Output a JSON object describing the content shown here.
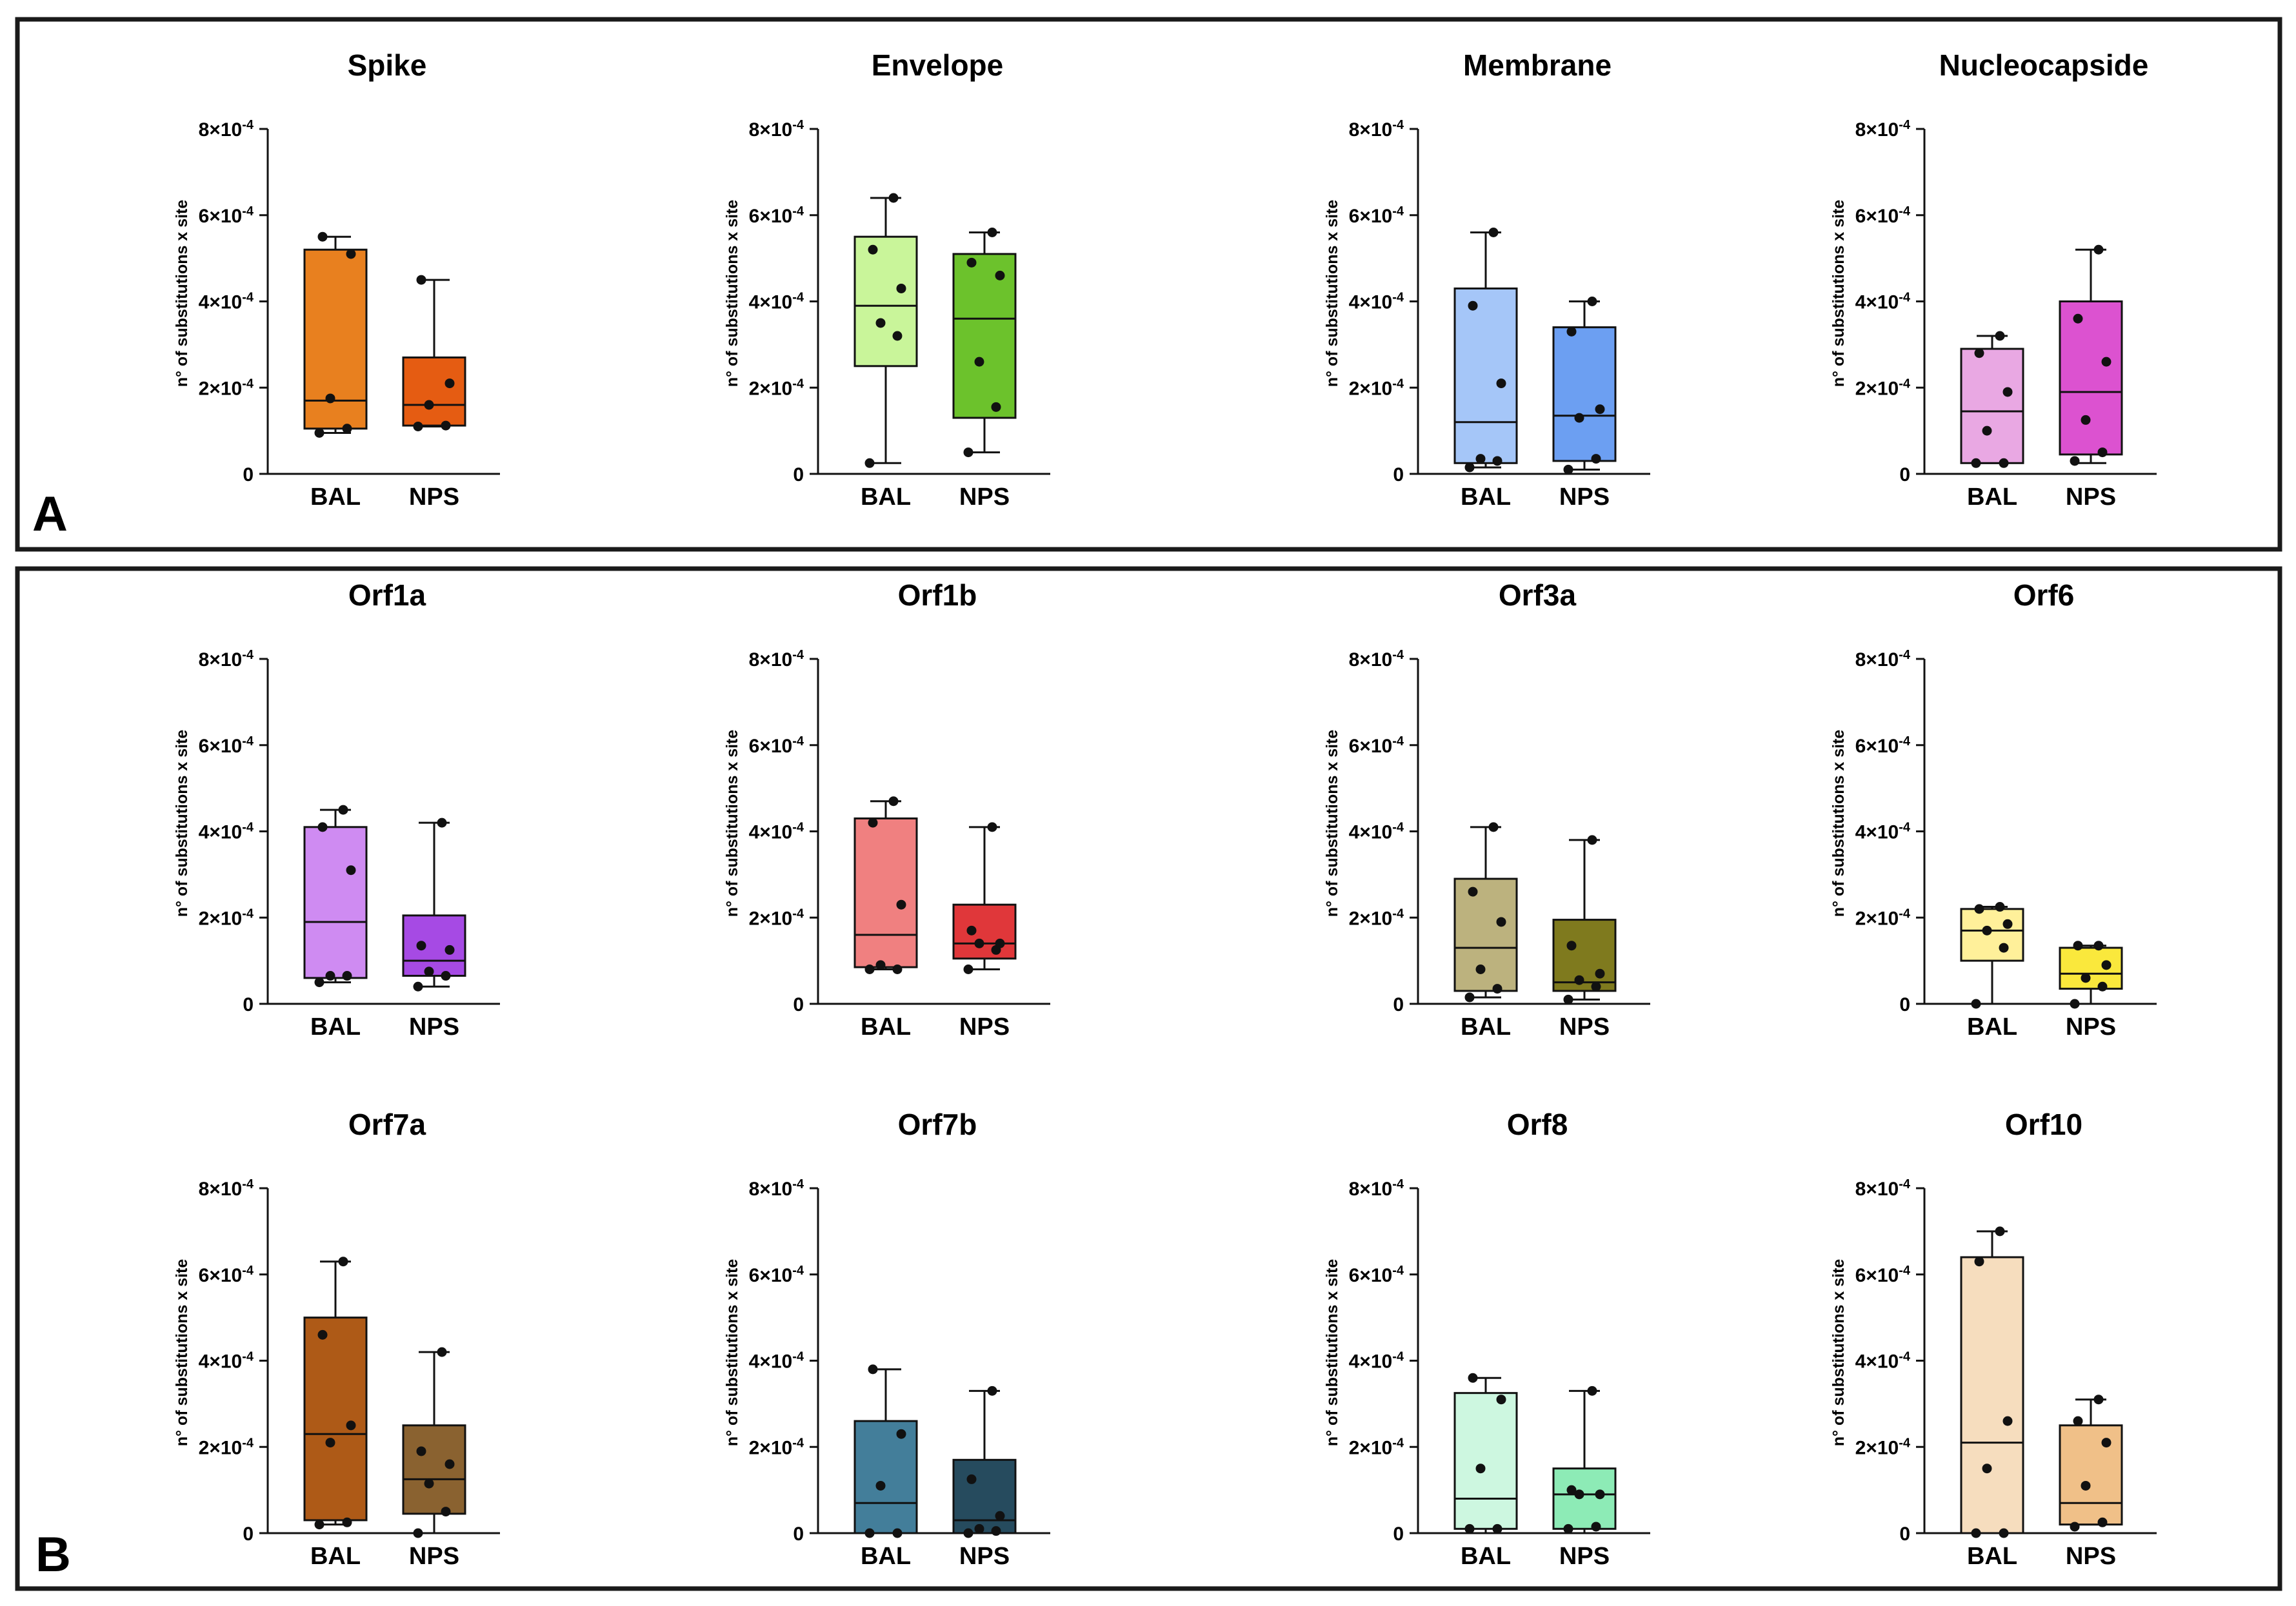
{
  "figure": {
    "panel_labels": [
      "A",
      "B"
    ],
    "y_axis_label": "n° of substitutions x site",
    "y_tick_labels": [
      {
        "base": "0",
        "exp": ""
      },
      {
        "base": "2×10",
        "exp": "-4"
      },
      {
        "base": "4×10",
        "exp": "-4"
      },
      {
        "base": "6×10",
        "exp": "-4"
      },
      {
        "base": "8×10",
        "exp": "-4"
      }
    ],
    "categories": [
      "BAL",
      "NPS"
    ]
  },
  "chart_data": [
    {
      "type": "box",
      "title": "Spike",
      "panel": "A",
      "ylabel": "n° of substitutions x site",
      "ylim": [
        0,
        0.0008
      ],
      "categories": [
        "BAL",
        "NPS"
      ],
      "series": [
        {
          "name": "BAL",
          "color": "#E8801F",
          "whisker_low": 9.5e-05,
          "q1": 0.000105,
          "median": 0.00017,
          "q3": 0.00052,
          "whisker_high": 0.00055,
          "points": [
            9.5e-05,
            0.000105,
            0.000175,
            0.00051,
            0.00055
          ]
        },
        {
          "name": "NPS",
          "color": "#E55C12",
          "whisker_low": 0.00011,
          "q1": 0.000112,
          "median": 0.00016,
          "q3": 0.00027,
          "whisker_high": 0.00045,
          "points": [
            0.00011,
            0.000112,
            0.00016,
            0.00021,
            0.00045
          ]
        }
      ]
    },
    {
      "type": "box",
      "title": "Envelope",
      "panel": "A",
      "ylabel": "n° of substitutions x site",
      "ylim": [
        0,
        0.0008
      ],
      "categories": [
        "BAL",
        "NPS"
      ],
      "series": [
        {
          "name": "BAL",
          "color": "#C9F59A",
          "whisker_low": 2.5e-05,
          "q1": 0.00025,
          "median": 0.00039,
          "q3": 0.00055,
          "whisker_high": 0.00064,
          "points": [
            2.5e-05,
            0.00032,
            0.00035,
            0.00043,
            0.00052,
            0.00064
          ]
        },
        {
          "name": "NPS",
          "color": "#6CC22C",
          "whisker_low": 5e-05,
          "q1": 0.00013,
          "median": 0.00036,
          "q3": 0.00051,
          "whisker_high": 0.00056,
          "points": [
            5e-05,
            0.000155,
            0.00026,
            0.00046,
            0.00049,
            0.00056
          ]
        }
      ]
    },
    {
      "type": "box",
      "title": "Membrane",
      "panel": "A",
      "ylabel": "n° of substitutions x site",
      "ylim": [
        0,
        0.0008
      ],
      "categories": [
        "BAL",
        "NPS"
      ],
      "series": [
        {
          "name": "BAL",
          "color": "#A5C6F8",
          "whisker_low": 1.5e-05,
          "q1": 2.5e-05,
          "median": 0.00012,
          "q3": 0.00043,
          "whisker_high": 0.00056,
          "points": [
            1.5e-05,
            3e-05,
            3.5e-05,
            0.00021,
            0.00039,
            0.00056
          ]
        },
        {
          "name": "NPS",
          "color": "#6C9FF2",
          "whisker_low": 1e-05,
          "q1": 3e-05,
          "median": 0.000135,
          "q3": 0.00034,
          "whisker_high": 0.0004,
          "points": [
            1e-05,
            3.5e-05,
            0.00013,
            0.00015,
            0.00033,
            0.0004
          ]
        }
      ]
    },
    {
      "type": "box",
      "title": "Nucleocapside",
      "panel": "A",
      "ylabel": "n° of substitutions x site",
      "ylim": [
        0,
        0.0008
      ],
      "categories": [
        "BAL",
        "NPS"
      ],
      "series": [
        {
          "name": "BAL",
          "color": "#E9A8E3",
          "whisker_low": 2.5e-05,
          "q1": 2.5e-05,
          "median": 0.000145,
          "q3": 0.00029,
          "whisker_high": 0.00032,
          "points": [
            2.5e-05,
            2.5e-05,
            0.0001,
            0.00019,
            0.00028,
            0.00032
          ]
        },
        {
          "name": "NPS",
          "color": "#DC52D0",
          "whisker_low": 2.5e-05,
          "q1": 4.5e-05,
          "median": 0.00019,
          "q3": 0.0004,
          "whisker_high": 0.00052,
          "points": [
            3e-05,
            5e-05,
            0.000125,
            0.00026,
            0.00036,
            0.00052
          ]
        }
      ]
    },
    {
      "type": "box",
      "title": "Orf1a",
      "panel": "B",
      "ylabel": "n° of substitutions x site",
      "ylim": [
        0,
        0.0008
      ],
      "categories": [
        "BAL",
        "NPS"
      ],
      "series": [
        {
          "name": "BAL",
          "color": "#CF8BF2",
          "whisker_low": 5e-05,
          "q1": 6e-05,
          "median": 0.00019,
          "q3": 0.00041,
          "whisker_high": 0.00045,
          "points": [
            5e-05,
            6.5e-05,
            6.5e-05,
            0.00031,
            0.00041,
            0.00045
          ]
        },
        {
          "name": "NPS",
          "color": "#A64AE4",
          "whisker_low": 4e-05,
          "q1": 6.5e-05,
          "median": 0.0001,
          "q3": 0.000205,
          "whisker_high": 0.00042,
          "points": [
            4e-05,
            6.5e-05,
            7.5e-05,
            0.000125,
            0.000135,
            0.00042
          ]
        }
      ]
    },
    {
      "type": "box",
      "title": "Orf1b",
      "panel": "B",
      "ylabel": "n° of substitutions x site",
      "ylim": [
        0,
        0.0008
      ],
      "categories": [
        "BAL",
        "NPS"
      ],
      "series": [
        {
          "name": "BAL",
          "color": "#F08080",
          "whisker_low": 8e-05,
          "q1": 8.5e-05,
          "median": 0.00016,
          "q3": 0.00043,
          "whisker_high": 0.00047,
          "points": [
            8e-05,
            8e-05,
            9e-05,
            0.00023,
            0.00042,
            0.00047
          ]
        },
        {
          "name": "NPS",
          "color": "#E0373A",
          "whisker_low": 8e-05,
          "q1": 0.000105,
          "median": 0.00014,
          "q3": 0.00023,
          "whisker_high": 0.00041,
          "points": [
            8e-05,
            0.000125,
            0.00014,
            0.00014,
            0.00017,
            0.00041
          ]
        }
      ]
    },
    {
      "type": "box",
      "title": "Orf3a",
      "panel": "B",
      "ylabel": "n° of substitutions x site",
      "ylim": [
        0,
        0.0008
      ],
      "categories": [
        "BAL",
        "NPS"
      ],
      "series": [
        {
          "name": "BAL",
          "color": "#BCB27E",
          "whisker_low": 1.5e-05,
          "q1": 3e-05,
          "median": 0.00013,
          "q3": 0.00029,
          "whisker_high": 0.00041,
          "points": [
            1.5e-05,
            3.5e-05,
            8e-05,
            0.00019,
            0.00026,
            0.00041
          ]
        },
        {
          "name": "NPS",
          "color": "#7F7A1E",
          "whisker_low": 1e-05,
          "q1": 3e-05,
          "median": 5e-05,
          "q3": 0.000195,
          "whisker_high": 0.00038,
          "points": [
            1e-05,
            4e-05,
            5.5e-05,
            7e-05,
            0.000135,
            0.00038
          ]
        }
      ]
    },
    {
      "type": "box",
      "title": "Orf6",
      "panel": "B",
      "ylabel": "n° of substitutions x site",
      "ylim": [
        0,
        0.0008
      ],
      "categories": [
        "BAL",
        "NPS"
      ],
      "series": [
        {
          "name": "BAL",
          "color": "#FFF09A",
          "whisker_low": 0,
          "q1": 0.0001,
          "median": 0.00017,
          "q3": 0.00022,
          "whisker_high": 0.000225,
          "points": [
            0,
            0.00013,
            0.00017,
            0.000185,
            0.00022,
            0.000225
          ]
        },
        {
          "name": "NPS",
          "color": "#FAE83C",
          "whisker_low": 0,
          "q1": 3.5e-05,
          "median": 7e-05,
          "q3": 0.00013,
          "whisker_high": 0.000135,
          "points": [
            0,
            4e-05,
            6e-05,
            9e-05,
            0.000135,
            0.000135
          ]
        }
      ]
    },
    {
      "type": "box",
      "title": "Orf7a",
      "panel": "B",
      "ylabel": "n° of substitutions x site",
      "ylim": [
        0,
        0.0008
      ],
      "categories": [
        "BAL",
        "NPS"
      ],
      "series": [
        {
          "name": "BAL",
          "color": "#AE5A17",
          "whisker_low": 2e-05,
          "q1": 3e-05,
          "median": 0.00023,
          "q3": 0.0005,
          "whisker_high": 0.00063,
          "points": [
            2e-05,
            2.5e-05,
            0.00021,
            0.00025,
            0.00046,
            0.00063
          ]
        },
        {
          "name": "NPS",
          "color": "#8A6230",
          "whisker_low": 0,
          "q1": 4.5e-05,
          "median": 0.000125,
          "q3": 0.00025,
          "whisker_high": 0.00042,
          "points": [
            0,
            5e-05,
            0.000115,
            0.00016,
            0.00019,
            0.00042
          ]
        }
      ]
    },
    {
      "type": "box",
      "title": "Orf7b",
      "panel": "B",
      "ylabel": "n° of substitutions x site",
      "ylim": [
        0,
        0.0008
      ],
      "categories": [
        "BAL",
        "NPS"
      ],
      "series": [
        {
          "name": "BAL",
          "color": "#437E9A",
          "whisker_low": 0,
          "q1": 0,
          "median": 7e-05,
          "q3": 0.00026,
          "whisker_high": 0.00038,
          "points": [
            0,
            0,
            0.00011,
            0.00023,
            0.00038
          ]
        },
        {
          "name": "NPS",
          "color": "#264B5E",
          "whisker_low": 0,
          "q1": 0,
          "median": 3e-05,
          "q3": 0.00017,
          "whisker_high": 0.00033,
          "points": [
            0,
            5e-06,
            1e-05,
            4e-05,
            0.000125,
            0.00033
          ]
        }
      ]
    },
    {
      "type": "box",
      "title": "Orf8",
      "panel": "B",
      "ylabel": "n° of substitutions x site",
      "ylim": [
        0,
        0.0008
      ],
      "categories": [
        "BAL",
        "NPS"
      ],
      "series": [
        {
          "name": "BAL",
          "color": "#CDF7E0",
          "whisker_low": 0,
          "q1": 1e-05,
          "median": 8e-05,
          "q3": 0.000325,
          "whisker_high": 0.00036,
          "points": [
            1e-05,
            1e-05,
            0.00015,
            0.00031,
            0.00036
          ]
        },
        {
          "name": "NPS",
          "color": "#8DEBB6",
          "whisker_low": 0,
          "q1": 1e-05,
          "median": 9e-05,
          "q3": 0.00015,
          "whisker_high": 0.00033,
          "points": [
            1e-05,
            1.5e-05,
            9e-05,
            9e-05,
            0.0001,
            0.00033
          ]
        }
      ]
    },
    {
      "type": "box",
      "title": "Orf10",
      "panel": "B",
      "ylabel": "n° of substitutions x site",
      "ylim": [
        0,
        0.0008
      ],
      "categories": [
        "BAL",
        "NPS"
      ],
      "series": [
        {
          "name": "BAL",
          "color": "#F6DDBE",
          "whisker_low": 0,
          "q1": 0,
          "median": 0.00021,
          "q3": 0.00064,
          "whisker_high": 0.0007,
          "points": [
            0,
            0,
            0.00015,
            0.00026,
            0.00063,
            0.0007
          ]
        },
        {
          "name": "NPS",
          "color": "#F0C088",
          "whisker_low": 2e-05,
          "q1": 2e-05,
          "median": 7e-05,
          "q3": 0.00025,
          "whisker_high": 0.00031,
          "points": [
            1.5e-05,
            2.5e-05,
            0.00011,
            0.00021,
            0.00026,
            0.00031
          ]
        }
      ]
    }
  ]
}
